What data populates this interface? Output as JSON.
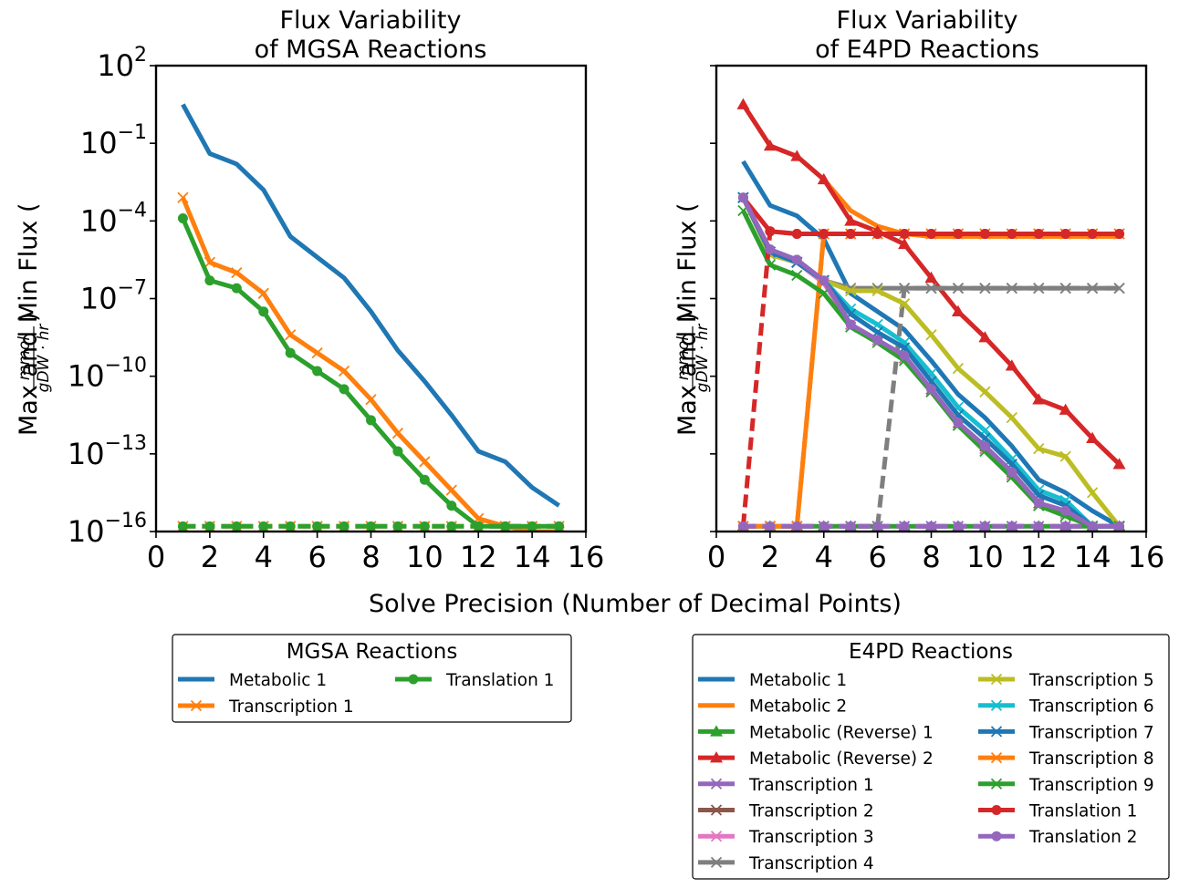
{
  "xlabel": "Solve Precision (Number of Decimal Points)",
  "ylabel_prefix": "Max and Min Flux (",
  "ylabel_numerator": "mmol",
  "ylabel_denominator": "gDW · hr",
  "ylabel_suffix": ")",
  "chart_data": [
    {
      "type": "line",
      "title_line1": "Flux Variability",
      "title_line2": "of MGSA Reactions",
      "xlim": [
        0,
        16
      ],
      "x_ticks": [
        "0",
        "2",
        "4",
        "6",
        "8",
        "10",
        "12",
        "14",
        "16"
      ],
      "y_scale": "log",
      "ylim": [
        1e-16,
        100
      ],
      "y_ticks": [
        {
          "base": "10",
          "exp": "2",
          "value": 2
        },
        {
          "base": "10",
          "exp": "−1",
          "value": -1
        },
        {
          "base": "10",
          "exp": "−4",
          "value": -4
        },
        {
          "base": "10",
          "exp": "−7",
          "value": -7
        },
        {
          "base": "10",
          "exp": "−10",
          "value": -10
        },
        {
          "base": "10",
          "exp": "−13",
          "value": -13
        },
        {
          "base": "10",
          "exp": "−16",
          "value": -16
        }
      ],
      "legend_title": "MGSA Reactions",
      "legend_placement": "below",
      "series": [
        {
          "name": "Metabolic 1",
          "color": "#1f77b4",
          "marker": "none",
          "x": [
            1,
            2,
            3,
            4,
            5,
            6,
            7,
            8,
            9,
            10,
            11,
            12,
            13,
            14,
            15
          ],
          "max_log10": [
            0.5,
            -1.4,
            -1.8,
            -2.8,
            -4.6,
            -5.4,
            -6.2,
            -7.5,
            -9.0,
            -10.2,
            -11.5,
            -12.9,
            -13.3,
            -14.3,
            -15.0
          ]
        },
        {
          "name": "Transcription 1",
          "color": "#ff7f0e",
          "marker": "x",
          "x": [
            1,
            2,
            3,
            4,
            5,
            6,
            7,
            8,
            9,
            10,
            11,
            12,
            13,
            14,
            15
          ],
          "max_log10": [
            -3.1,
            -5.6,
            -6.0,
            -6.8,
            -8.4,
            -9.1,
            -9.8,
            -10.9,
            -12.2,
            -13.3,
            -14.4,
            -15.5,
            -15.8,
            -16.0,
            -16.0
          ],
          "min_log10": [
            -15.8,
            -15.8,
            -15.8,
            -15.8,
            -15.8,
            -15.8,
            -15.8,
            -15.8,
            -15.8,
            -15.8,
            -15.8,
            -15.8,
            -15.8,
            -15.8,
            -15.8
          ]
        },
        {
          "name": "Translation 1",
          "color": "#2ca02c",
          "marker": "circle",
          "x": [
            1,
            2,
            3,
            4,
            5,
            6,
            7,
            8,
            9,
            10,
            11,
            12,
            13,
            14,
            15
          ],
          "max_log10": [
            -3.9,
            -6.3,
            -6.6,
            -7.5,
            -9.1,
            -9.8,
            -10.5,
            -11.7,
            -12.9,
            -14.0,
            -15.0,
            -15.8,
            -15.8,
            -15.8,
            -15.8
          ],
          "min_log10": [
            -15.8,
            -15.8,
            -15.8,
            -15.8,
            -15.8,
            -15.8,
            -15.8,
            -15.8,
            -15.8,
            -15.8,
            -15.8,
            -15.8,
            -15.8,
            -15.8,
            -15.8
          ]
        }
      ]
    },
    {
      "type": "line",
      "title_line1": "Flux Variability",
      "title_line2": "of E4PD Reactions",
      "xlim": [
        0,
        16
      ],
      "x_ticks": [
        "0",
        "2",
        "4",
        "6",
        "8",
        "10",
        "12",
        "14",
        "16"
      ],
      "y_scale": "log",
      "ylim": [
        1e-16,
        100
      ],
      "y_ticks_labeled": false,
      "legend_title": "E4PD Reactions",
      "legend_placement": "below",
      "series": [
        {
          "name": "Metabolic 1",
          "color": "#1f77b4",
          "marker": "none",
          "x": [
            1,
            2,
            3,
            4,
            5,
            6,
            7,
            8,
            9,
            10,
            11,
            12,
            13,
            14,
            15
          ],
          "max_log10": [
            -1.7,
            -3.4,
            -3.8,
            -4.7,
            -6.8,
            -7.5,
            -8.2,
            -9.4,
            -10.7,
            -11.6,
            -12.7,
            -14.0,
            -14.5,
            -15.2,
            -15.8
          ]
        },
        {
          "name": "Metabolic 2",
          "color": "#ff7f0e",
          "marker": "none",
          "x": [
            1,
            2,
            3,
            4,
            5,
            6,
            7,
            8,
            9,
            10,
            11,
            12,
            13,
            14,
            15
          ],
          "max_log10": [
            0.5,
            -1.1,
            -1.5,
            -2.4,
            -3.6,
            -4.2,
            -4.5,
            -4.6,
            -4.6,
            -4.6,
            -4.6,
            -4.6,
            -4.6,
            -4.6,
            -4.6
          ]
        },
        {
          "name": "Metabolic (Reverse) 1",
          "color": "#2ca02c",
          "marker": "triangle",
          "x": [
            1,
            2,
            3,
            4,
            5,
            6,
            7,
            8,
            9,
            10,
            11,
            12,
            13,
            14,
            15
          ],
          "max_log10": [
            -15.8,
            -15.8,
            -15.8,
            -15.8,
            -15.8,
            -15.8,
            -15.8,
            -15.8,
            -15.8,
            -15.8,
            -15.8,
            -15.8,
            -15.8,
            -15.8,
            -15.8
          ]
        },
        {
          "name": "Metabolic (Reverse) 2",
          "color": "#d62728",
          "marker": "triangle",
          "x": [
            1,
            2,
            3,
            4,
            5,
            6,
            7,
            8,
            9,
            10,
            11,
            12,
            13,
            14,
            15
          ],
          "max_log10": [
            0.5,
            -1.1,
            -1.5,
            -2.4,
            -4.0,
            -4.4,
            -4.9,
            -6.2,
            -7.5,
            -8.5,
            -9.6,
            -10.9,
            -11.3,
            -12.4,
            -13.4
          ]
        },
        {
          "name": "Transcription 1",
          "color": "#9467bd",
          "marker": "x",
          "x": [
            1,
            2,
            3,
            4,
            5,
            6,
            7,
            8,
            9,
            10,
            11,
            12,
            13,
            14,
            15
          ],
          "max_log10": [
            -3.1,
            -5.2,
            -5.6,
            -6.3,
            -8.0,
            -8.6,
            -9.3,
            -10.6,
            -11.9,
            -12.8,
            -13.8,
            -15.0,
            -15.3,
            -15.8,
            -15.8
          ],
          "min_log10": [
            -15.8,
            -15.8,
            -15.8,
            -15.8,
            -15.8,
            -15.8,
            -15.8,
            -15.8,
            -15.8,
            -15.8,
            -15.8,
            -15.8,
            -15.8,
            -15.8,
            -15.8
          ]
        },
        {
          "name": "Transcription 2",
          "color": "#8c564b",
          "marker": "x",
          "x": [
            1,
            2,
            3,
            4,
            5,
            6,
            7,
            8,
            9,
            10,
            11,
            12,
            13,
            14,
            15
          ],
          "max_log10": [
            -3.1,
            -5.3,
            -5.6,
            -6.3,
            -8.0,
            -8.6,
            -9.3,
            -10.5,
            -11.8,
            -12.7,
            -13.7,
            -14.9,
            -15.3,
            -15.8,
            -15.8
          ]
        },
        {
          "name": "Transcription 3",
          "color": "#e377c2",
          "marker": "x",
          "x": [
            1,
            2,
            3,
            4,
            5,
            6,
            7,
            8,
            9,
            10,
            11,
            12,
            13,
            14,
            15
          ],
          "max_log10": [
            -3.1,
            -5.3,
            -5.6,
            -6.4,
            -8.0,
            -8.6,
            -9.3,
            -10.6,
            -11.9,
            -12.8,
            -13.8,
            -15.0,
            -15.3,
            -15.8,
            -15.8
          ]
        },
        {
          "name": "Transcription 4",
          "color": "#7f7f7f",
          "marker": "x",
          "x": [
            1,
            2,
            3,
            4,
            5,
            6,
            7,
            8,
            9,
            10,
            11,
            12,
            13,
            14,
            15
          ],
          "max_log10": [
            -3.1,
            -5.2,
            -5.6,
            -6.3,
            -6.6,
            -6.6,
            -6.6,
            -6.6,
            -6.6,
            -6.6,
            -6.6,
            -6.6,
            -6.6,
            -6.6,
            -6.6
          ],
          "min_log10": [
            -15.8,
            -15.8,
            -15.8,
            -15.8,
            -15.8,
            -15.8,
            -6.6,
            -6.6,
            -6.6,
            -6.6,
            -6.6,
            -6.6,
            -6.6,
            -6.6,
            -6.6
          ]
        },
        {
          "name": "Transcription 5",
          "color": "#bcbd22",
          "marker": "x",
          "x": [
            1,
            2,
            3,
            4,
            5,
            6,
            7,
            8,
            9,
            10,
            11,
            12,
            13,
            14,
            15
          ],
          "max_log10": [
            -3.1,
            -5.3,
            -5.6,
            -6.3,
            -6.7,
            -6.7,
            -7.2,
            -8.4,
            -9.7,
            -10.6,
            -11.6,
            -12.8,
            -13.1,
            -14.5,
            -15.8
          ]
        },
        {
          "name": "Transcription 6",
          "color": "#17becf",
          "marker": "x",
          "x": [
            1,
            2,
            3,
            4,
            5,
            6,
            7,
            8,
            9,
            10,
            11,
            12,
            13,
            14,
            15
          ],
          "max_log10": [
            -3.1,
            -5.2,
            -5.6,
            -6.3,
            -7.4,
            -8.0,
            -8.7,
            -9.9,
            -11.2,
            -12.1,
            -13.2,
            -14.4,
            -14.8,
            -15.8,
            -15.8
          ]
        },
        {
          "name": "Transcription 7",
          "color": "#1f77b4",
          "marker": "x",
          "x": [
            1,
            2,
            3,
            4,
            5,
            6,
            7,
            8,
            9,
            10,
            11,
            12,
            13,
            14,
            15
          ],
          "max_log10": [
            -3.1,
            -5.2,
            -5.6,
            -6.3,
            -7.6,
            -8.3,
            -8.9,
            -10.2,
            -11.5,
            -12.4,
            -13.4,
            -14.6,
            -15.0,
            -15.8,
            -15.8
          ]
        },
        {
          "name": "Transcription 8",
          "color": "#ff7f0e",
          "marker": "x",
          "x": [
            1,
            2,
            3,
            4,
            5,
            6,
            7,
            8,
            9,
            10,
            11,
            12,
            13,
            14,
            15
          ],
          "max_log10": [
            -15.8,
            -15.8,
            -15.8,
            -4.5,
            -4.5,
            -4.5,
            -4.5,
            -4.5,
            -4.5,
            -4.5,
            -4.5,
            -4.5,
            -4.5,
            -4.5,
            -4.5
          ],
          "min_log10": [
            -15.8,
            -15.8,
            -15.8,
            -4.5,
            -4.5,
            -4.5,
            -4.5,
            -4.5,
            -4.5,
            -4.5,
            -4.5,
            -4.5,
            -4.5,
            -4.5,
            -4.5
          ]
        },
        {
          "name": "Transcription 9",
          "color": "#2ca02c",
          "marker": "x",
          "x": [
            1,
            2,
            3,
            4,
            5,
            6,
            7,
            8,
            9,
            10,
            11,
            12,
            13,
            14,
            15
          ],
          "max_log10": [
            -3.6,
            -5.7,
            -6.1,
            -6.8,
            -8.1,
            -8.7,
            -9.4,
            -10.6,
            -11.9,
            -12.9,
            -13.9,
            -15.0,
            -15.4,
            -15.8,
            -15.8
          ]
        },
        {
          "name": "Translation 1",
          "color": "#d62728",
          "marker": "circle",
          "x": [
            1,
            2,
            3,
            4,
            5,
            6,
            7,
            8,
            9,
            10,
            11,
            12,
            13,
            14,
            15
          ],
          "max_log10": [
            -3.1,
            -4.4,
            -4.5,
            -4.5,
            -4.5,
            -4.5,
            -4.5,
            -4.5,
            -4.5,
            -4.5,
            -4.5,
            -4.5,
            -4.5,
            -4.5,
            -4.5
          ],
          "min_log10": [
            -15.8,
            -4.4,
            -4.5,
            -4.5,
            -4.5,
            -4.5,
            -4.5,
            -4.5,
            -4.5,
            -4.5,
            -4.5,
            -4.5,
            -4.5,
            -4.5,
            -4.5
          ]
        },
        {
          "name": "Translation 2",
          "color": "#9467bd",
          "marker": "circle",
          "x": [
            1,
            2,
            3,
            4,
            5,
            6,
            7,
            8,
            9,
            10,
            11,
            12,
            13,
            14,
            15
          ],
          "max_log10": [
            -3.1,
            -5.1,
            -5.5,
            -6.3,
            -8.0,
            -8.6,
            -9.2,
            -10.5,
            -11.8,
            -12.7,
            -13.7,
            -14.9,
            -15.2,
            -15.8,
            -15.8
          ],
          "min_log10": [
            -15.8,
            -15.8,
            -15.8,
            -15.8,
            -15.8,
            -15.8,
            -15.8,
            -15.8,
            -15.8,
            -15.8,
            -15.8,
            -15.8,
            -15.8,
            -15.8,
            -15.8
          ]
        }
      ]
    }
  ]
}
